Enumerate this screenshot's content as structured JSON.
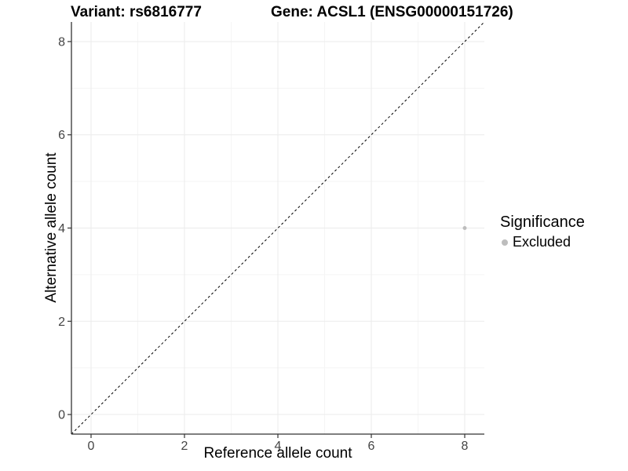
{
  "titles": {
    "variant": "Variant: rs6816777",
    "gene": "Gene: ACSL1 (ENSG00000151726)"
  },
  "chart_data": {
    "type": "scatter",
    "xlabel": "Reference allele count",
    "ylabel": "Alternative allele count",
    "x_ticks": [
      0,
      2,
      4,
      6,
      8
    ],
    "y_ticks": [
      0,
      2,
      4,
      6,
      8
    ],
    "xlim": [
      -0.42,
      8.42
    ],
    "ylim": [
      -0.42,
      8.42
    ],
    "grid": {
      "major": true,
      "minor": true
    },
    "reference_line": {
      "type": "identity",
      "slope": 1,
      "intercept": 0,
      "style": "dashed",
      "color": "#000000"
    },
    "series": [
      {
        "name": "Excluded",
        "color": "#bdbdbd",
        "marker_radius": 2.5,
        "points": [
          [
            8,
            4
          ]
        ]
      }
    ],
    "legend": {
      "position": "right",
      "title": "Significance",
      "items": [
        {
          "label": "Excluded",
          "color": "#bdbdbd"
        }
      ]
    },
    "colors": {
      "axis_line": "#333333",
      "tick_mark": "#333333",
      "tick_label": "#444444",
      "grid_major": "#ebebeb",
      "grid_minor": "#f5f5f5",
      "background": "#ffffff"
    }
  }
}
